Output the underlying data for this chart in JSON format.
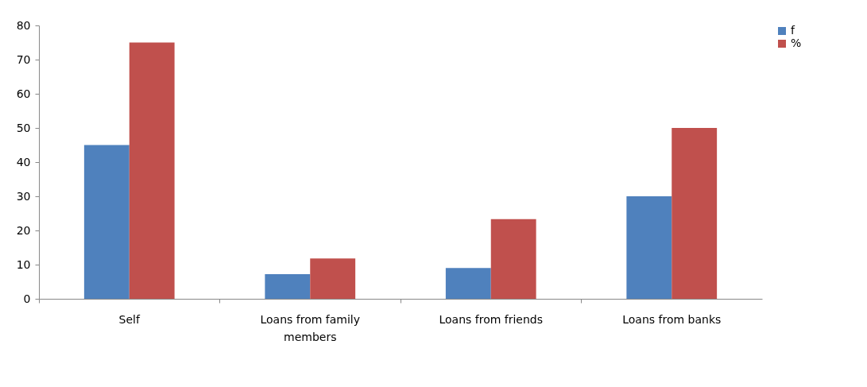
{
  "chart_data": {
    "type": "bar",
    "categories": [
      "Self",
      "Loans from family members",
      "Loans from friends",
      "Loans from banks"
    ],
    "series": [
      {
        "name": "f",
        "color": "#4f81bd",
        "values": [
          45,
          7.2,
          9,
          30
        ]
      },
      {
        "name": "%",
        "color": "#c0504d",
        "values": [
          75,
          11.8,
          23.3,
          50
        ]
      }
    ],
    "ylim": [
      0,
      80
    ],
    "yticks": [
      0,
      10,
      20,
      30,
      40,
      50,
      60,
      70,
      80
    ],
    "grid": false,
    "legend": "right"
  }
}
